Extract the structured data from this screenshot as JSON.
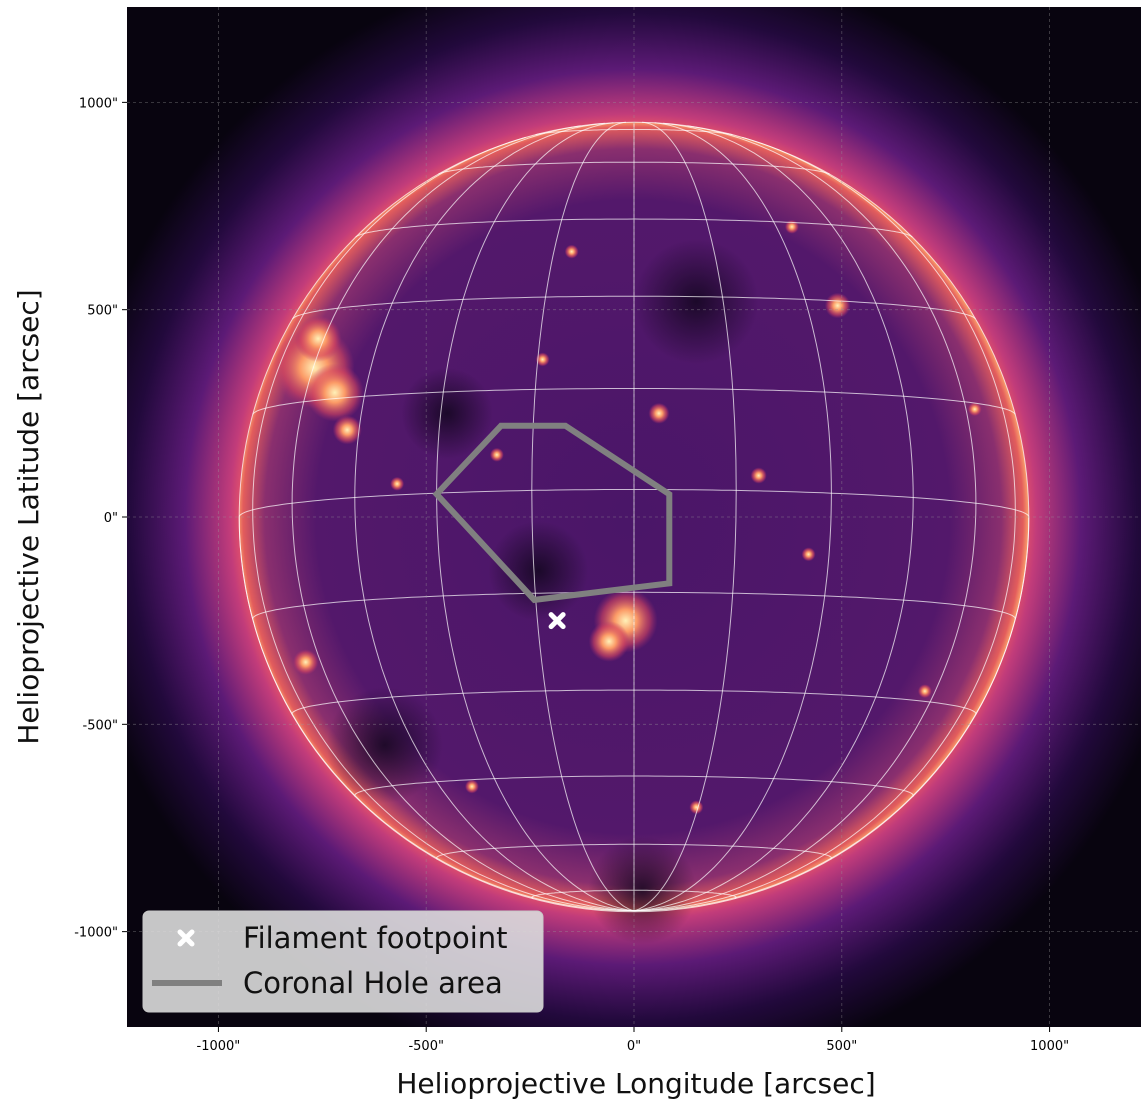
{
  "chart_data": {
    "type": "scatter",
    "title": "",
    "xlabel": "Helioprojective Longitude [arcsec]",
    "ylabel": "Helioprojective Latitude [arcsec]",
    "xlim": [
      -1220,
      1220
    ],
    "ylim": [
      -1230,
      1230
    ],
    "x_ticks": [
      -1000,
      -500,
      0,
      500,
      1000
    ],
    "x_tick_labels": [
      "-1000\"",
      "-500\"",
      "0\"",
      "500\"",
      "1000\""
    ],
    "y_ticks": [
      1000,
      500,
      0,
      -500,
      -1000
    ],
    "y_tick_labels": [
      "1000\"",
      "500\"",
      "0\"",
      "-500\"",
      "-1000\""
    ],
    "grid": true,
    "background_image": "solar disk, EUV observation, magma colormap",
    "solar_radius_arcsec": 950,
    "series": [
      {
        "name": "Filament footpoint",
        "kind": "marker",
        "marker": "x-filled",
        "color": "#ffffff",
        "points": [
          [
            -185,
            -250
          ]
        ]
      },
      {
        "name": "Coronal Hole area",
        "kind": "polygon",
        "color": "#808080",
        "points": [
          [
            -320,
            220
          ],
          [
            -165,
            220
          ],
          [
            85,
            55
          ],
          [
            85,
            -160
          ],
          [
            -240,
            -200
          ],
          [
            -475,
            55
          ]
        ]
      }
    ],
    "legend_position": "lower-left"
  }
}
